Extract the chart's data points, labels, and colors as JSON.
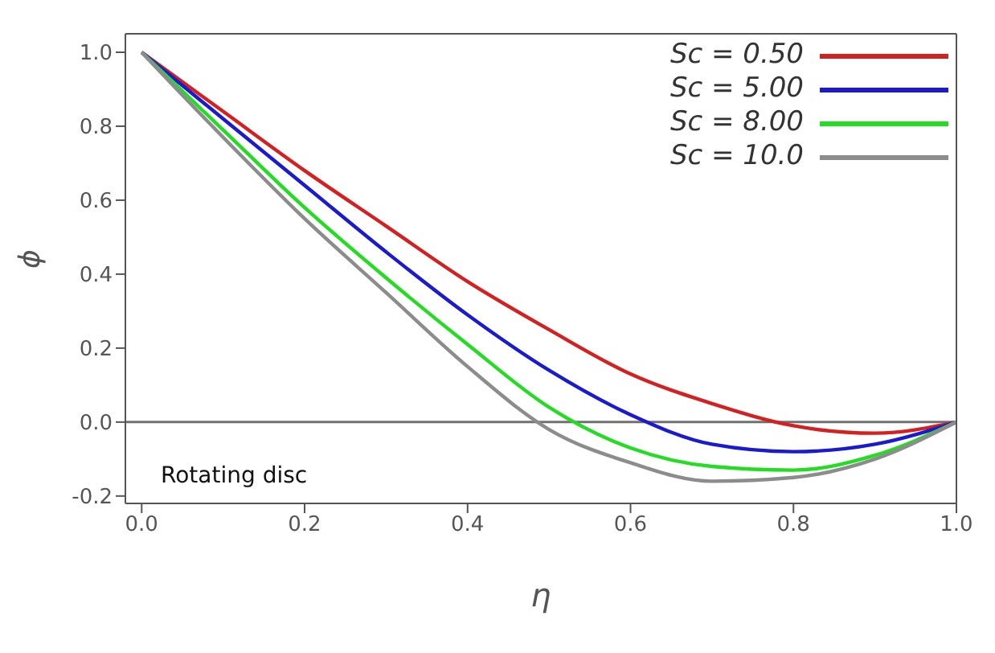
{
  "chart_data": {
    "type": "line",
    "xlabel": "η",
    "ylabel": "ϕ",
    "x": [
      0,
      0.1,
      0.2,
      0.3,
      0.4,
      0.5,
      0.6,
      0.7,
      0.8,
      0.9,
      1.0
    ],
    "series": [
      {
        "name": "Sc = 0.50",
        "color": "#d42020",
        "values": [
          1,
          0.84,
          0.68,
          0.53,
          0.38,
          0.25,
          0.13,
          0.05,
          -0.01,
          -0.03,
          0
        ]
      },
      {
        "name": "Sc = 5.00",
        "color": "#1a1ad0",
        "values": [
          1,
          0.82,
          0.64,
          0.46,
          0.29,
          0.14,
          0.02,
          -0.06,
          -0.08,
          -0.06,
          0
        ]
      },
      {
        "name": "Sc = 8.00",
        "color": "#22dd22",
        "values": [
          1,
          0.79,
          0.58,
          0.39,
          0.21,
          0.04,
          -0.07,
          -0.12,
          -0.13,
          -0.09,
          0
        ]
      },
      {
        "name": "Sc = 10.0",
        "color": "#8c8c8c",
        "values": [
          1,
          0.77,
          0.55,
          0.35,
          0.15,
          -0.02,
          -0.11,
          -0.16,
          -0.15,
          -0.1,
          0
        ]
      }
    ],
    "xlim": [
      -0.02,
      1.0
    ],
    "ylim": [
      -0.22,
      1.05
    ],
    "xticks": [
      {
        "value": 0,
        "label": "0.0"
      },
      0.2,
      0.4,
      0.6,
      0.8,
      {
        "value": 1,
        "label": "1.0"
      }
    ],
    "yticks": [
      {
        "value": -0.2,
        "label": "-0.2"
      },
      {
        "value": 0,
        "label": "0.0"
      },
      0.2,
      0.4,
      0.6,
      0.8,
      {
        "value": 1,
        "label": "1.0"
      }
    ],
    "ref_lines": [
      {
        "axis": "y",
        "value": 0,
        "color": "#707070"
      }
    ],
    "annotations": [
      "Rotating disc"
    ],
    "legend": "top right",
    "marker": "none",
    "line_style": "solid"
  }
}
